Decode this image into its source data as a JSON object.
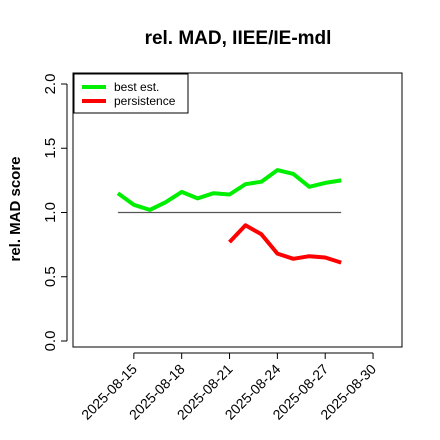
{
  "chart_data": {
    "type": "line",
    "title": "rel. MAD, IIEE/IE-mdl",
    "xlabel": "",
    "ylabel": "rel. MAD score",
    "x_ticks": [
      "2025-08-15",
      "2025-08-18",
      "2025-08-21",
      "2025-08-24",
      "2025-08-27",
      "2025-08-30"
    ],
    "xlim": [
      "2025-08-12",
      "2025-08-31"
    ],
    "y_ticks": [
      "0.0",
      "0.5",
      "1.0",
      "1.5",
      "2.0"
    ],
    "ylim": [
      0,
      2.0
    ],
    "reference_line": {
      "y": 1.0,
      "from": "2025-08-14",
      "to": "2025-08-28",
      "color": "#555555"
    },
    "legend": {
      "placement": "top-left"
    },
    "grid": false,
    "series": [
      {
        "name": "best est.",
        "color": "#00ee00",
        "x": [
          "2025-08-14",
          "2025-08-15",
          "2025-08-16",
          "2025-08-17",
          "2025-08-18",
          "2025-08-19",
          "2025-08-20",
          "2025-08-21",
          "2025-08-22",
          "2025-08-23",
          "2025-08-24",
          "2025-08-25",
          "2025-08-26",
          "2025-08-27",
          "2025-08-28"
        ],
        "values": [
          1.15,
          1.06,
          1.02,
          1.08,
          1.16,
          1.11,
          1.15,
          1.14,
          1.22,
          1.24,
          1.33,
          1.3,
          1.2,
          1.23,
          1.25
        ]
      },
      {
        "name": "persistence",
        "color": "#ff0000",
        "x": [
          "2025-08-21",
          "2025-08-22",
          "2025-08-23",
          "2025-08-24",
          "2025-08-25",
          "2025-08-26",
          "2025-08-27",
          "2025-08-28"
        ],
        "values": [
          0.77,
          0.9,
          0.83,
          0.68,
          0.64,
          0.66,
          0.65,
          0.61
        ]
      }
    ]
  }
}
